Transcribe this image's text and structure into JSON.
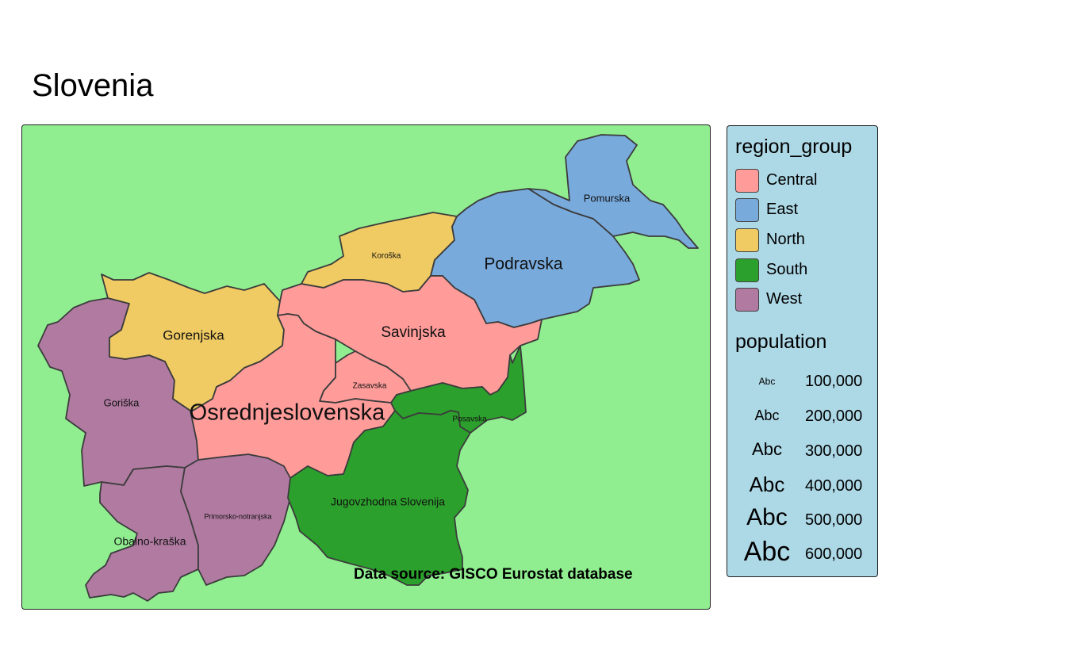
{
  "title": "Slovenia",
  "credit": "Data source: GISCO Eurostat database",
  "colors": {
    "map_background": "#90ee90",
    "legend_background": "#add8e6",
    "central": "#ff9c9a",
    "east": "#78aadc",
    "north": "#f0ca63",
    "south": "#2ca02c",
    "west": "#b07aa1"
  },
  "legend": {
    "group_title": "region_group",
    "groups": [
      {
        "label": "Central",
        "color": "#ff9c9a"
      },
      {
        "label": "East",
        "color": "#78aadc"
      },
      {
        "label": "North",
        "color": "#f0ca63"
      },
      {
        "label": "South",
        "color": "#2ca02c"
      },
      {
        "label": "West",
        "color": "#b07aa1"
      }
    ],
    "size_title": "population",
    "size_sample": "Abc",
    "sizes": [
      {
        "label": "100,000"
      },
      {
        "label": "200,000"
      },
      {
        "label": "300,000"
      },
      {
        "label": "400,000"
      },
      {
        "label": "500,000"
      },
      {
        "label": "600,000"
      }
    ]
  },
  "regions": [
    {
      "id": "pomurska",
      "name": "Pomurska",
      "group": "East"
    },
    {
      "id": "podravska",
      "name": "Podravska",
      "group": "East"
    },
    {
      "id": "koroska",
      "name": "Koroška",
      "group": "North"
    },
    {
      "id": "gorenjska",
      "name": "Gorenjska",
      "group": "North"
    },
    {
      "id": "savinjska",
      "name": "Savinjska",
      "group": "Central"
    },
    {
      "id": "zasavska",
      "name": "Zasavska",
      "group": "Central"
    },
    {
      "id": "osrednjeslovenska",
      "name": "Osrednjeslovenska",
      "group": "Central"
    },
    {
      "id": "posavska",
      "name": "Posavska",
      "group": "South"
    },
    {
      "id": "jugovzhodna",
      "name": "Jugovzhodna Slovenija",
      "group": "South"
    },
    {
      "id": "goriska",
      "name": "Goriška",
      "group": "West"
    },
    {
      "id": "primorsko",
      "name": "Primorsko-notranjska",
      "group": "West"
    },
    {
      "id": "obalno",
      "name": "Obalno-kraška",
      "group": "West"
    }
  ]
}
